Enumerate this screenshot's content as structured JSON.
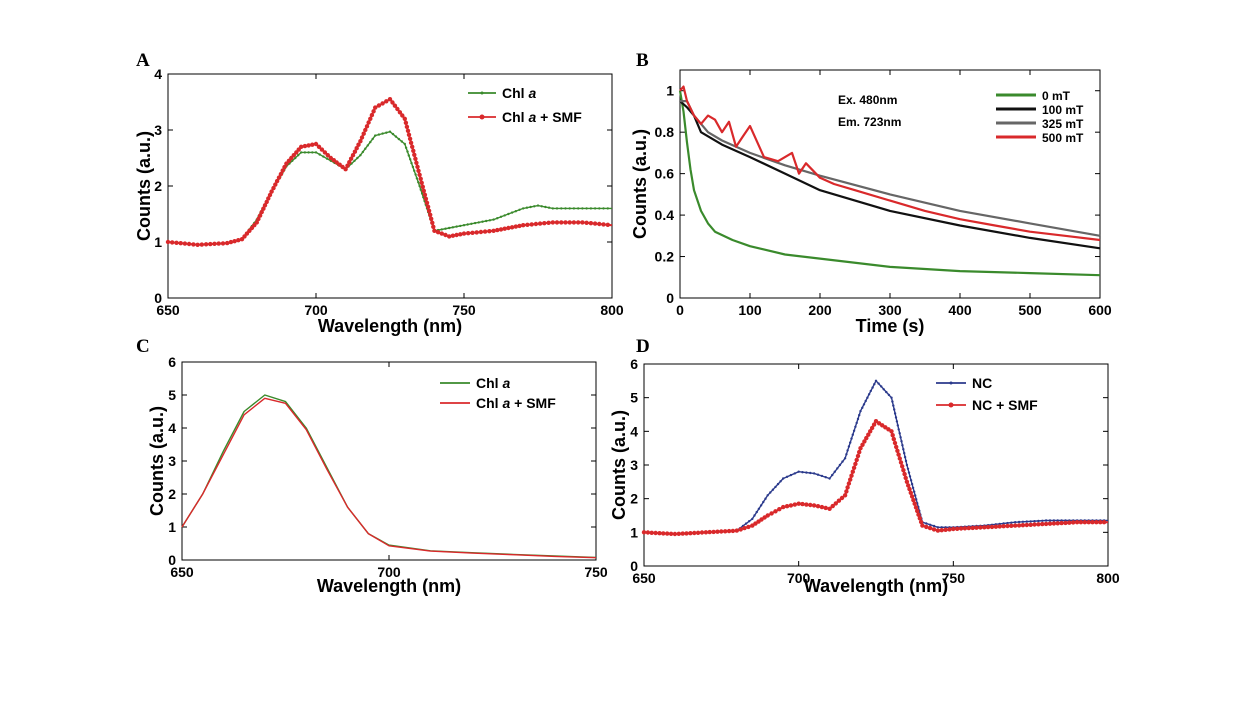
{
  "chart_data": [
    {
      "id": "A",
      "panel_label": "A",
      "type": "line",
      "xlabel": "Wavelength (nm)",
      "ylabel": "Counts (a.u.)",
      "xlim": [
        650,
        800
      ],
      "ylim": [
        0,
        4
      ],
      "xticks": [
        650,
        700,
        750,
        800
      ],
      "yticks": [
        0,
        1,
        2,
        3,
        4
      ],
      "series": [
        {
          "name": "Chl a",
          "name_main": "Chl ",
          "name_italic": "a",
          "name_suffix": "",
          "color": "#3a8a2c",
          "marker": "small",
          "x": [
            650,
            660,
            670,
            675,
            680,
            685,
            690,
            695,
            700,
            705,
            710,
            715,
            720,
            725,
            730,
            735,
            740,
            745,
            750,
            760,
            770,
            775,
            780,
            790,
            800
          ],
          "y": [
            1.0,
            0.95,
            0.98,
            1.05,
            1.4,
            1.9,
            2.35,
            2.6,
            2.6,
            2.45,
            2.3,
            2.55,
            2.9,
            2.97,
            2.75,
            2.0,
            1.2,
            1.25,
            1.3,
            1.4,
            1.6,
            1.65,
            1.6,
            1.6,
            1.6
          ]
        },
        {
          "name": "Chl a + SMF",
          "name_main": "Chl ",
          "name_italic": "a",
          "name_suffix": " + SMF",
          "color": "#d9292b",
          "marker": "dot",
          "x": [
            650,
            660,
            670,
            675,
            680,
            685,
            690,
            695,
            700,
            705,
            710,
            715,
            720,
            725,
            730,
            735,
            740,
            745,
            750,
            760,
            770,
            780,
            790,
            800
          ],
          "y": [
            1.0,
            0.95,
            0.98,
            1.05,
            1.35,
            1.9,
            2.4,
            2.7,
            2.75,
            2.5,
            2.3,
            2.8,
            3.4,
            3.55,
            3.2,
            2.2,
            1.2,
            1.1,
            1.15,
            1.2,
            1.3,
            1.35,
            1.35,
            1.3
          ]
        }
      ]
    },
    {
      "id": "B",
      "panel_label": "B",
      "type": "line",
      "xlabel": "Time (s)",
      "ylabel": "Counts (a.u.)",
      "xlim": [
        0,
        600
      ],
      "ylim": [
        0,
        1.1
      ],
      "xticks": [
        0,
        100,
        200,
        300,
        400,
        500,
        600
      ],
      "yticks": [
        0,
        0.2,
        0.4,
        0.6,
        0.8,
        1
      ],
      "annotations": [
        "Ex.  480nm",
        "Em. 723nm"
      ],
      "series": [
        {
          "name": "0 mT",
          "color": "#3a8a2c",
          "x": [
            0,
            5,
            10,
            15,
            20,
            30,
            40,
            50,
            75,
            100,
            150,
            200,
            300,
            400,
            500,
            600
          ],
          "y": [
            1.0,
            0.9,
            0.75,
            0.62,
            0.52,
            0.42,
            0.36,
            0.32,
            0.28,
            0.25,
            0.21,
            0.19,
            0.15,
            0.13,
            0.12,
            0.11
          ]
        },
        {
          "name": "100 mT",
          "color": "#111111",
          "x": [
            0,
            10,
            20,
            30,
            40,
            60,
            100,
            150,
            200,
            300,
            400,
            500,
            600
          ],
          "y": [
            0.95,
            0.92,
            0.88,
            0.8,
            0.78,
            0.74,
            0.68,
            0.6,
            0.52,
            0.42,
            0.35,
            0.29,
            0.24
          ]
        },
        {
          "name": "325 mT",
          "color": "#666666",
          "x": [
            0,
            10,
            20,
            40,
            60,
            100,
            150,
            200,
            300,
            400,
            500,
            600
          ],
          "y": [
            0.95,
            0.95,
            0.88,
            0.8,
            0.76,
            0.7,
            0.64,
            0.59,
            0.5,
            0.42,
            0.36,
            0.3
          ]
        },
        {
          "name": "500 mT",
          "color": "#d9292b",
          "x": [
            0,
            5,
            10,
            20,
            30,
            40,
            50,
            60,
            70,
            80,
            90,
            100,
            120,
            140,
            160,
            170,
            180,
            200,
            220,
            250,
            300,
            350,
            400,
            450,
            500,
            550,
            600
          ],
          "y": [
            1.0,
            1.02,
            0.95,
            0.88,
            0.84,
            0.88,
            0.86,
            0.8,
            0.85,
            0.73,
            0.78,
            0.83,
            0.68,
            0.66,
            0.7,
            0.6,
            0.65,
            0.58,
            0.55,
            0.52,
            0.47,
            0.42,
            0.38,
            0.35,
            0.32,
            0.3,
            0.28
          ]
        }
      ]
    },
    {
      "id": "C",
      "panel_label": "C",
      "type": "line",
      "xlabel": "Wavelength (nm)",
      "ylabel": "Counts (a.u.)",
      "xlim": [
        650,
        750
      ],
      "ylim": [
        0,
        6
      ],
      "xticks": [
        650,
        700,
        750
      ],
      "yticks": [
        0,
        1,
        2,
        3,
        4,
        5,
        6
      ],
      "series": [
        {
          "name": "Chl a",
          "name_main": "Chl ",
          "name_italic": "a",
          "name_suffix": "",
          "color": "#3a8a2c",
          "x": [
            650,
            655,
            660,
            665,
            670,
            675,
            680,
            685,
            690,
            695,
            700,
            710,
            720,
            730,
            740,
            750
          ],
          "y": [
            1.0,
            2.0,
            3.3,
            4.5,
            5.0,
            4.8,
            4.0,
            2.8,
            1.6,
            0.8,
            0.45,
            0.28,
            0.22,
            0.17,
            0.12,
            0.08
          ]
        },
        {
          "name": "Chl a + SMF",
          "name_main": "Chl ",
          "name_italic": "a",
          "name_suffix": " + SMF",
          "color": "#d9292b",
          "x": [
            650,
            655,
            660,
            665,
            670,
            675,
            680,
            685,
            690,
            695,
            700,
            710,
            720,
            730,
            740,
            750
          ],
          "y": [
            1.0,
            2.0,
            3.2,
            4.4,
            4.9,
            4.75,
            3.95,
            2.75,
            1.6,
            0.8,
            0.43,
            0.27,
            0.21,
            0.16,
            0.11,
            0.07
          ]
        }
      ]
    },
    {
      "id": "D",
      "panel_label": "D",
      "type": "line",
      "xlabel": "Wavelength (nm)",
      "ylabel": "Counts (a.u.)",
      "xlim": [
        650,
        800
      ],
      "ylim": [
        0,
        6
      ],
      "xticks": [
        650,
        700,
        750,
        800
      ],
      "yticks": [
        0,
        1,
        2,
        3,
        4,
        5,
        6
      ],
      "series": [
        {
          "name": "NC",
          "color": "#2b3a8c",
          "marker": "small",
          "x": [
            650,
            660,
            670,
            680,
            685,
            690,
            695,
            700,
            705,
            710,
            715,
            720,
            725,
            730,
            735,
            740,
            745,
            750,
            760,
            770,
            780,
            790,
            800
          ],
          "y": [
            1.0,
            0.95,
            1.0,
            1.05,
            1.4,
            2.1,
            2.6,
            2.8,
            2.75,
            2.6,
            3.2,
            4.6,
            5.5,
            5.0,
            3.0,
            1.3,
            1.15,
            1.15,
            1.2,
            1.3,
            1.35,
            1.35,
            1.35
          ]
        },
        {
          "name": "NC + SMF",
          "color": "#d9292b",
          "marker": "dot",
          "x": [
            650,
            660,
            670,
            680,
            685,
            690,
            695,
            700,
            705,
            710,
            715,
            720,
            725,
            730,
            735,
            740,
            745,
            750,
            760,
            770,
            780,
            790,
            800
          ],
          "y": [
            1.0,
            0.95,
            1.0,
            1.05,
            1.2,
            1.5,
            1.75,
            1.85,
            1.8,
            1.7,
            2.1,
            3.5,
            4.3,
            4.0,
            2.5,
            1.2,
            1.05,
            1.1,
            1.15,
            1.2,
            1.25,
            1.3,
            1.3
          ]
        }
      ]
    }
  ]
}
